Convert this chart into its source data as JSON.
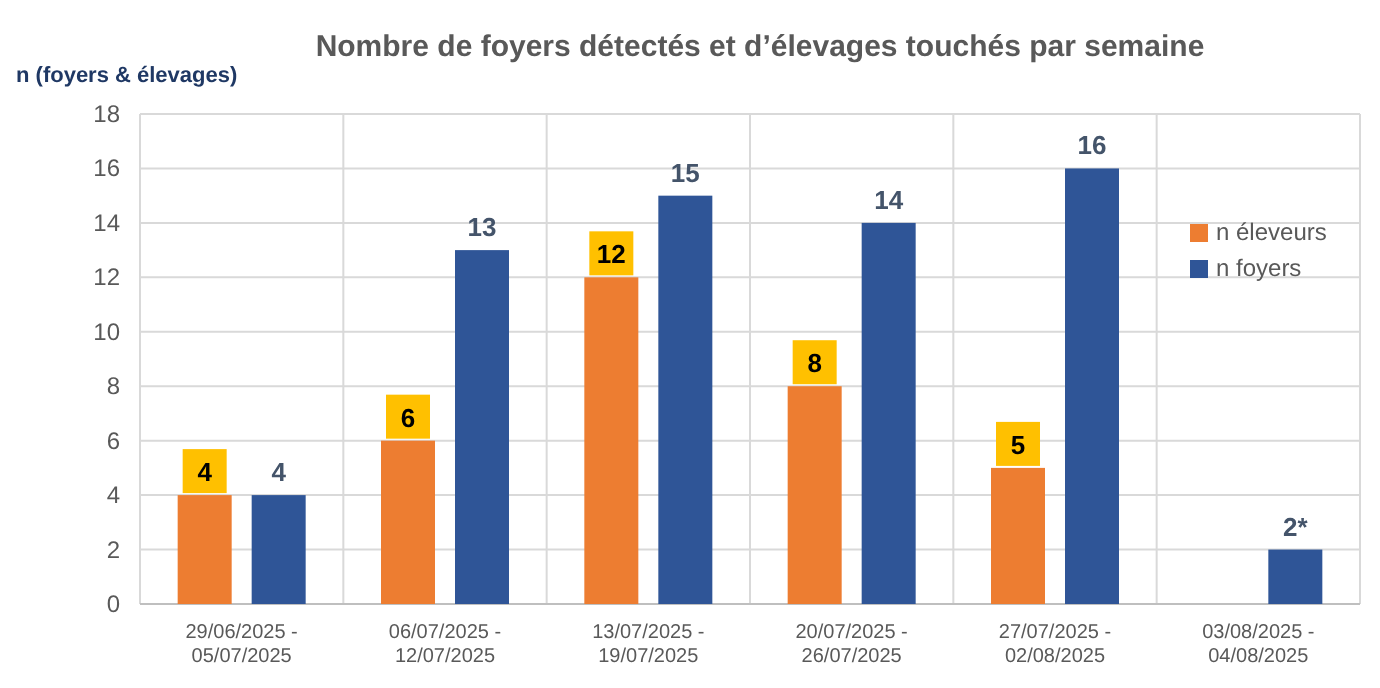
{
  "chart_data": {
    "type": "bar",
    "title": "Nombre de foyers détectés et d’élevages touchés par semaine",
    "ylabel": "n (foyers & élevages)",
    "categories": [
      "29/06/2025 -\n05/07/2025",
      "06/07/2025 -\n12/07/2025",
      "13/07/2025 -\n19/07/2025",
      "20/07/2025 -\n26/07/2025",
      "27/07/2025 -\n02/08/2025",
      "03/08/2025 -\n04/08/2025"
    ],
    "series": [
      {
        "name": "n éleveurs",
        "color": "#ed7d31",
        "values": [
          4,
          6,
          12,
          8,
          5,
          null
        ],
        "value_labels": [
          "4",
          "6",
          "12",
          "8",
          "5",
          null
        ]
      },
      {
        "name": "n foyers",
        "color": "#2f5597",
        "values": [
          4,
          13,
          15,
          14,
          16,
          2
        ],
        "value_labels": [
          "4",
          "13",
          "15",
          "14",
          "16",
          "2*"
        ]
      }
    ],
    "ylim": [
      0,
      18
    ],
    "yticks": [
      0,
      2,
      4,
      6,
      8,
      10,
      12,
      14,
      16,
      18
    ],
    "grid": true,
    "legend": "right"
  }
}
